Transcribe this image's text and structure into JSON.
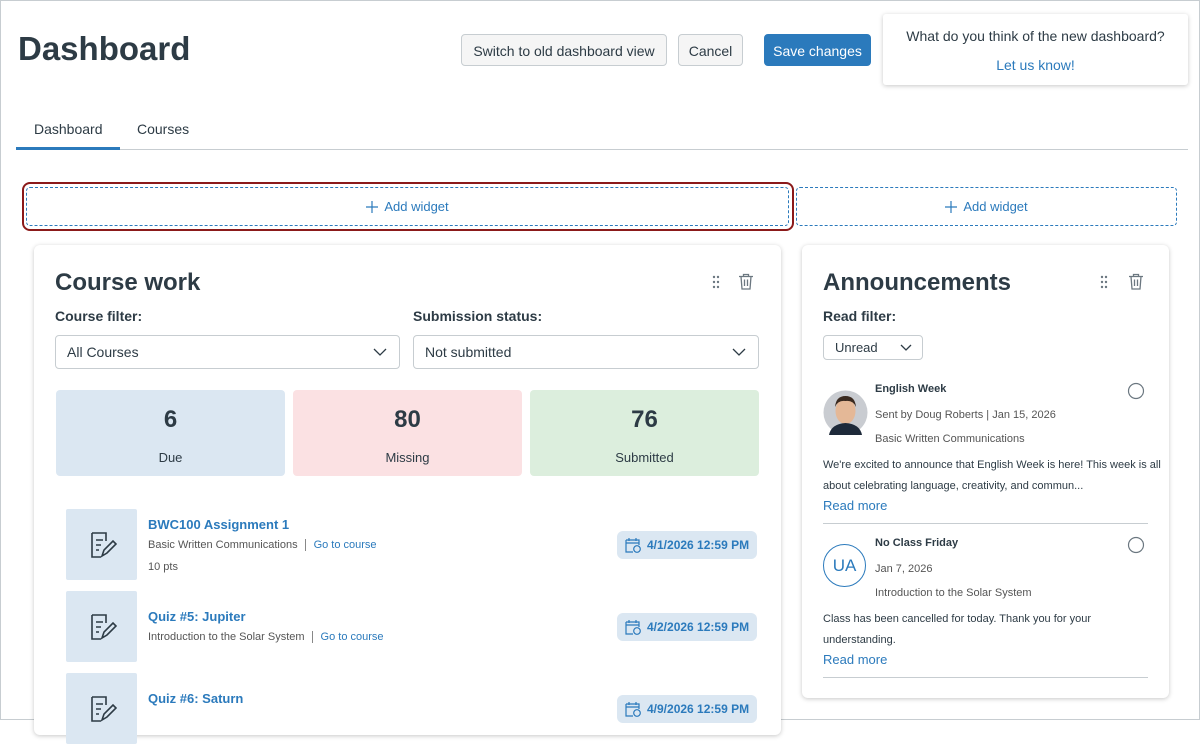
{
  "header": {
    "title": "Dashboard",
    "buttons": [
      "Switch to old dashboard view",
      "Cancel",
      "Save changes"
    ],
    "feedback": {
      "question": "What do you think of the new dashboard?",
      "link": "Let us know!"
    }
  },
  "tabs": [
    "Dashboard",
    "Courses"
  ],
  "add_widget": [
    "Add widget",
    "Add widget"
  ],
  "course_work": {
    "title": "Course work",
    "course_filter": {
      "label": "Course filter:",
      "value": "All Courses"
    },
    "submission_status": {
      "label": "Submission status:",
      "value": "Not submitted"
    },
    "stats": [
      {
        "value": 6,
        "label": "Due"
      },
      {
        "value": 80,
        "label": "Missing"
      },
      {
        "value": 76,
        "label": "Submitted"
      }
    ],
    "items": [
      {
        "title": "BWC100 Assignment 1",
        "course": "Basic Written Communications",
        "link": "Go to course",
        "points": "10 pts",
        "due": "4/1/2026 12:59 PM"
      },
      {
        "title": "Quiz #5: Jupiter",
        "course": "Introduction to the Solar System",
        "link": "Go to course",
        "due": "4/2/2026 12:59 PM"
      },
      {
        "title": "Quiz #6: Saturn",
        "due": "4/9/2026 12:59 PM"
      }
    ]
  },
  "announcements": {
    "title": "Announcements",
    "read_filter": {
      "label": "Read filter:",
      "value": "Unread"
    },
    "items": [
      {
        "title": "English Week",
        "meta": "Sent by Doug Roberts | Jan 15, 2026",
        "course": "Basic Written Communications",
        "body": "We're excited to announce that English Week is here! This week is all about celebrating language, creativity, and commun...",
        "link": "Read more"
      },
      {
        "title": "No Class Friday",
        "avatar": "UA",
        "meta": "Jan 7, 2026",
        "course": "Introduction to the Solar System",
        "body": "Class has been cancelled for today. Thank you for your understanding.",
        "link": "Read more"
      }
    ]
  }
}
